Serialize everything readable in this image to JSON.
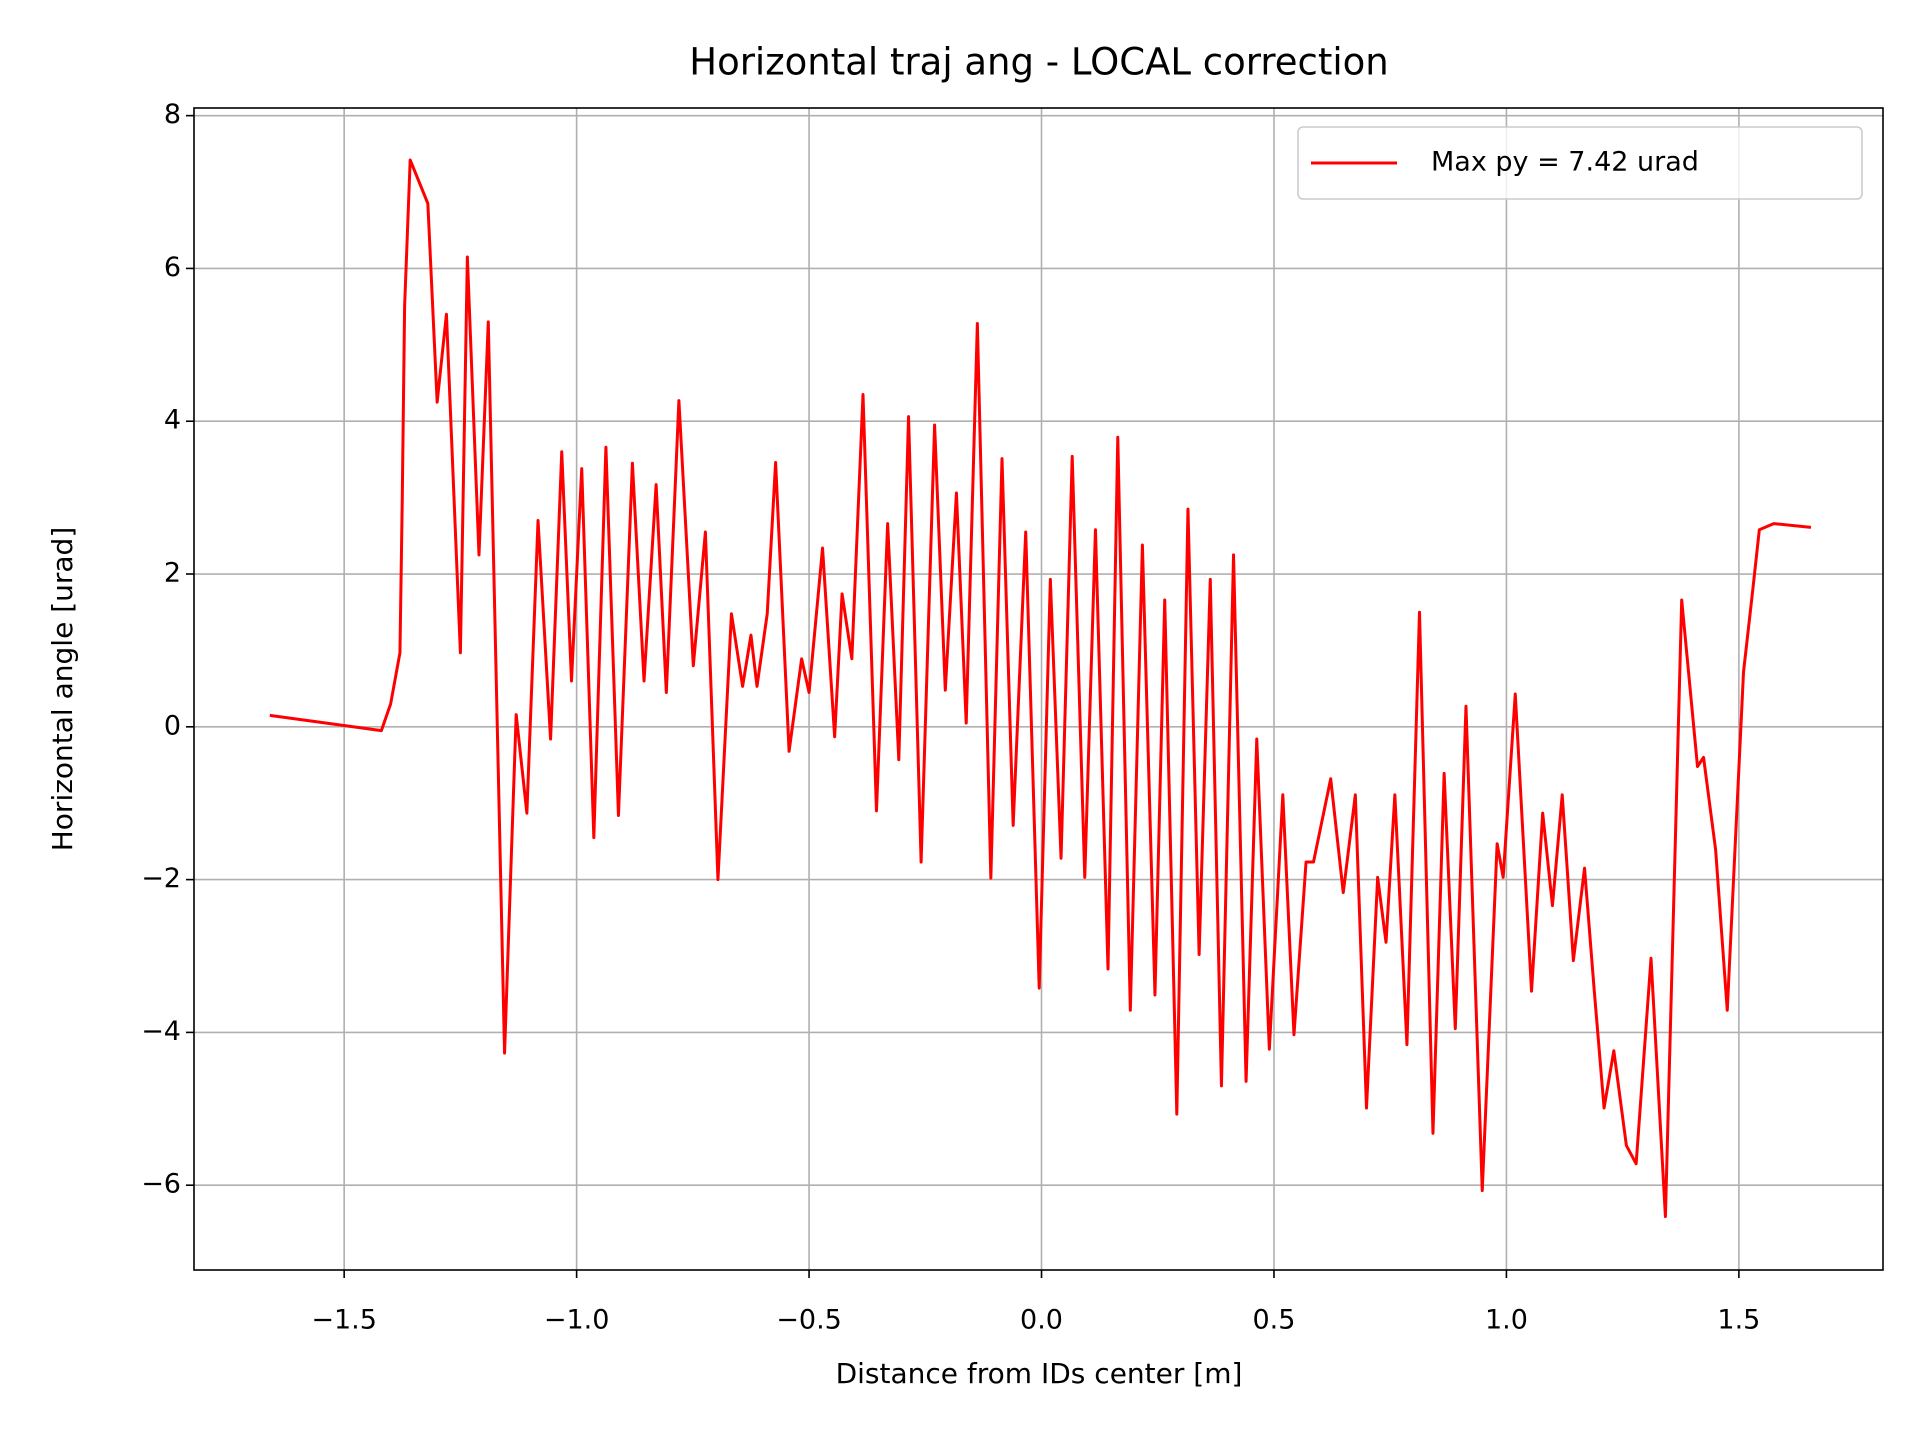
{
  "chart_data": {
    "type": "line",
    "title": "Horizontal traj ang - LOCAL correction",
    "xlabel": "Distance from IDs center [m]",
    "ylabel": "Horizontal angle [urad]",
    "xlim": [
      -1.823,
      1.81
    ],
    "ylim": [
      -7.11,
      8.1
    ],
    "xticks": [
      {
        "value": -1.5,
        "label": "−1.5"
      },
      {
        "value": -1.0,
        "label": "−1.0"
      },
      {
        "value": -0.5,
        "label": "−0.5"
      },
      {
        "value": 0,
        "label": "0.0"
      },
      0.5,
      {
        "value": 1.0,
        "label": "1.0"
      },
      1.5
    ],
    "yticks": [
      {
        "value": -6,
        "label": "−6"
      },
      {
        "value": -4,
        "label": "−4"
      },
      {
        "value": -2,
        "label": "−2"
      },
      0,
      2,
      4,
      6,
      8
    ],
    "grid": true,
    "legend": "upper right",
    "x": [
      -1.66,
      -1.42,
      -1.4,
      -1.38,
      -1.375,
      -1.37,
      -1.358,
      -1.32,
      -1.3,
      -1.28,
      -1.25,
      -1.235,
      -1.21,
      -1.19,
      -1.155,
      -1.13,
      -1.107,
      -1.083,
      -1.056,
      -1.032,
      -1.011,
      -0.989,
      -0.963,
      -0.937,
      -0.91,
      -0.88,
      -0.855,
      -0.829,
      -0.807,
      -0.78,
      -0.749,
      -0.723,
      -0.696,
      -0.667,
      -0.643,
      -0.625,
      -0.612,
      -0.59,
      -0.572,
      -0.543,
      -0.516,
      -0.5,
      -0.471,
      -0.445,
      -0.429,
      -0.408,
      -0.384,
      -0.355,
      -0.331,
      -0.307,
      -0.286,
      -0.259,
      -0.23,
      -0.207,
      -0.183,
      -0.162,
      -0.138,
      -0.109,
      -0.085,
      -0.061,
      -0.034,
      -0.005,
      0.019,
      0.042,
      0.066,
      0.093,
      0.116,
      0.143,
      0.164,
      0.191,
      0.217,
      0.244,
      0.265,
      0.291,
      0.315,
      0.339,
      0.363,
      0.387,
      0.413,
      0.44,
      0.463,
      0.49,
      0.519,
      0.543,
      0.569,
      0.585,
      0.622,
      0.649,
      0.675,
      0.699,
      0.723,
      0.741,
      0.76,
      0.786,
      0.813,
      0.842,
      0.866,
      0.89,
      0.913,
      0.948,
      0.98,
      0.993,
      1.019,
      1.054,
      1.078,
      1.099,
      1.12,
      1.144,
      1.168,
      1.189,
      1.21,
      1.231,
      1.258,
      1.279,
      1.311,
      1.342,
      1.377,
      1.411,
      1.424,
      1.45,
      1.475,
      1.51,
      1.53,
      1.544,
      1.575,
      1.655
    ],
    "series": [
      {
        "name": "Max py = 7.42 urad",
        "color": "#ff0000",
        "values": [
          0.15,
          -0.05,
          0.3,
          0.97,
          3.0,
          5.5,
          7.42,
          6.85,
          4.25,
          5.4,
          0.97,
          6.15,
          2.25,
          5.3,
          -4.27,
          0.16,
          -1.13,
          2.7,
          -0.16,
          3.6,
          0.6,
          3.38,
          -1.45,
          3.66,
          -1.16,
          3.45,
          0.6,
          3.17,
          0.45,
          4.27,
          0.8,
          2.55,
          -2.0,
          1.48,
          0.53,
          1.2,
          0.53,
          1.48,
          3.46,
          -0.32,
          0.89,
          0.45,
          2.34,
          -0.13,
          1.74,
          0.89,
          4.35,
          -1.1,
          2.66,
          -0.43,
          4.06,
          -1.77,
          3.95,
          0.48,
          3.06,
          0.05,
          5.28,
          -1.98,
          3.51,
          -1.29,
          2.55,
          -3.42,
          1.93,
          -1.72,
          3.54,
          -1.97,
          2.58,
          -3.17,
          3.79,
          -3.71,
          2.38,
          -3.51,
          1.66,
          -5.07,
          2.85,
          -2.98,
          1.93,
          -4.7,
          2.25,
          -4.64,
          -0.16,
          -4.22,
          -0.89,
          -4.03,
          -1.77,
          -1.77,
          -0.68,
          -2.17,
          -0.89,
          -4.99,
          -1.97,
          -2.82,
          -0.89,
          -4.16,
          1.5,
          -5.32,
          -0.61,
          -3.95,
          0.27,
          -6.07,
          -1.53,
          -1.97,
          0.43,
          -3.46,
          -1.13,
          -2.34,
          -0.89,
          -3.06,
          -1.85,
          -3.46,
          -4.99,
          -4.24,
          -5.48,
          -5.72,
          -3.03,
          -6.41,
          1.66,
          -0.52,
          -0.4,
          -1.61,
          -3.71,
          0.72,
          1.8,
          2.58,
          2.66,
          2.61
        ]
      }
    ]
  }
}
